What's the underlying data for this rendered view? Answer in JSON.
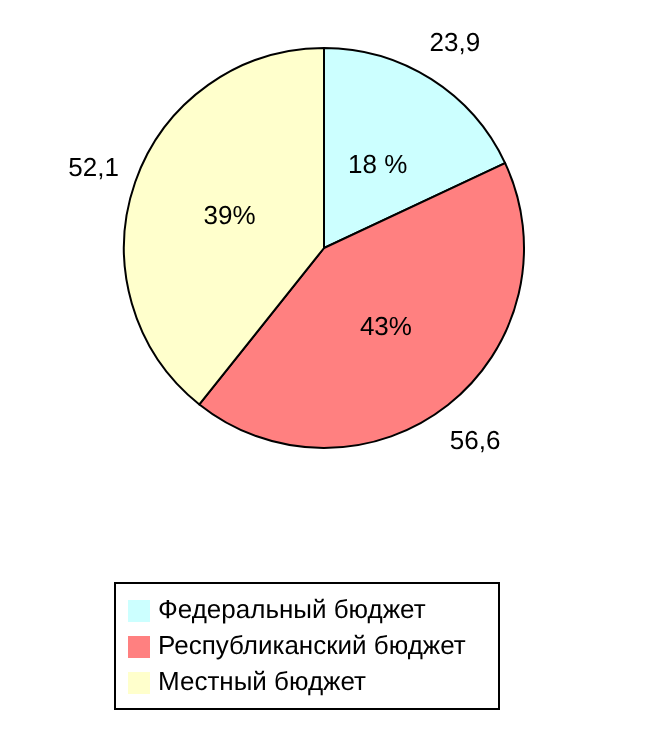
{
  "chart_data": {
    "type": "pie",
    "categories": [
      "Федеральный бюджет",
      "Республиканский бюджет",
      "Местный бюджет"
    ],
    "values": [
      23.9,
      56.6,
      52.1
    ],
    "colors": [
      "#ccffff",
      "#ff8080",
      "#ffffcc"
    ],
    "value_labels": [
      "23,9",
      "56,6",
      "52,1"
    ],
    "annotations": [
      "18 %",
      "43%",
      "39%"
    ],
    "legend": "bottom"
  }
}
